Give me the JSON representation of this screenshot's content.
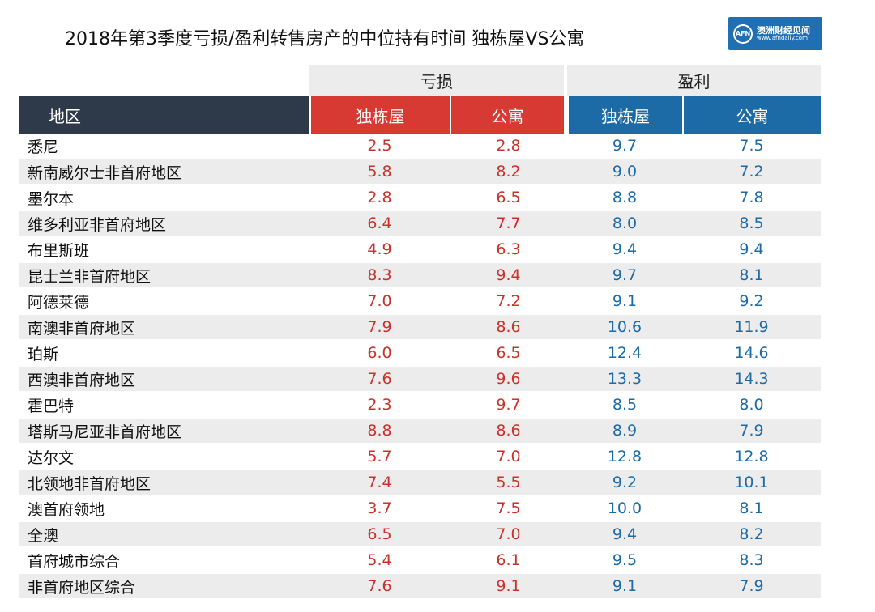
{
  "header": {
    "title": "2018年第3季度亏损/盈利转售房产的中位持有时间 独栋屋VS公寓",
    "logo_text": "澳洲财经见闻",
    "logo_url": "www.afndaily.com",
    "logo_mark": "AFN"
  },
  "chart_data": {
    "type": "table",
    "groups": [
      "亏损",
      "盈利"
    ],
    "columns": [
      "地区",
      "独栋屋",
      "公寓",
      "独栋屋",
      "公寓"
    ],
    "rows": [
      {
        "region": "悉尼",
        "loss_house": "2.5",
        "loss_unit": "2.8",
        "profit_house": "9.7",
        "profit_unit": "7.5"
      },
      {
        "region": "新南威尔士非首府地区",
        "loss_house": "5.8",
        "loss_unit": "8.2",
        "profit_house": "9.0",
        "profit_unit": "7.2"
      },
      {
        "region": "墨尔本",
        "loss_house": "2.8",
        "loss_unit": "6.5",
        "profit_house": "8.8",
        "profit_unit": "7.8"
      },
      {
        "region": "维多利亚非首府地区",
        "loss_house": "6.4",
        "loss_unit": "7.7",
        "profit_house": "8.0",
        "profit_unit": "8.5"
      },
      {
        "region": "布里斯班",
        "loss_house": "4.9",
        "loss_unit": "6.3",
        "profit_house": "9.4",
        "profit_unit": "9.4"
      },
      {
        "region": "昆士兰非首府地区",
        "loss_house": "8.3",
        "loss_unit": "9.4",
        "profit_house": "9.7",
        "profit_unit": "8.1"
      },
      {
        "region": "阿德莱德",
        "loss_house": "7.0",
        "loss_unit": "7.2",
        "profit_house": "9.1",
        "profit_unit": "9.2"
      },
      {
        "region": "南澳非首府地区",
        "loss_house": "7.9",
        "loss_unit": "8.6",
        "profit_house": "10.6",
        "profit_unit": "11.9"
      },
      {
        "region": "珀斯",
        "loss_house": "6.0",
        "loss_unit": "6.5",
        "profit_house": "12.4",
        "profit_unit": "14.6"
      },
      {
        "region": "西澳非首府地区",
        "loss_house": "7.6",
        "loss_unit": "9.6",
        "profit_house": "13.3",
        "profit_unit": "14.3"
      },
      {
        "region": "霍巴特",
        "loss_house": "2.3",
        "loss_unit": "9.7",
        "profit_house": "8.5",
        "profit_unit": "8.0"
      },
      {
        "region": "塔斯马尼亚非首府地区",
        "loss_house": "8.8",
        "loss_unit": "8.6",
        "profit_house": "8.9",
        "profit_unit": "7.9"
      },
      {
        "region": "达尔文",
        "loss_house": "5.7",
        "loss_unit": "7.0",
        "profit_house": "12.8",
        "profit_unit": "12.8"
      },
      {
        "region": "北领地非首府地区",
        "loss_house": "7.4",
        "loss_unit": "5.5",
        "profit_house": "9.2",
        "profit_unit": "10.1"
      },
      {
        "region": "澳首府领地",
        "loss_house": "3.7",
        "loss_unit": "7.5",
        "profit_house": "10.0",
        "profit_unit": "8.1"
      },
      {
        "region": "全澳",
        "loss_house": "6.5",
        "loss_unit": "7.0",
        "profit_house": "9.4",
        "profit_unit": "8.2"
      },
      {
        "region": "首府城市综合",
        "loss_house": "5.4",
        "loss_unit": "6.1",
        "profit_house": "9.5",
        "profit_unit": "8.3"
      },
      {
        "region": "非首府地区综合",
        "loss_house": "7.6",
        "loss_unit": "9.1",
        "profit_house": "9.1",
        "profit_unit": "7.9"
      }
    ]
  },
  "colors": {
    "loss_header": "#d63a33",
    "profit_header": "#1c6aa6",
    "region_header": "#2e3a4a",
    "loss_text": "#c8322b",
    "profit_text": "#1c6aa6",
    "stripe": "#ececec"
  }
}
